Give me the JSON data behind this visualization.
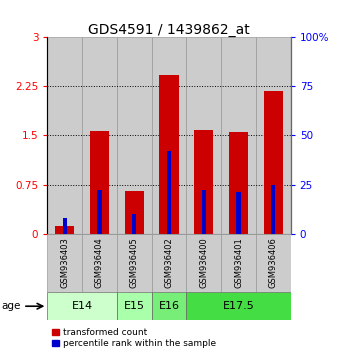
{
  "title": "GDS4591 / 1439862_at",
  "samples": [
    "GSM936403",
    "GSM936404",
    "GSM936405",
    "GSM936402",
    "GSM936400",
    "GSM936401",
    "GSM936406"
  ],
  "transformed_count": [
    0.12,
    1.57,
    0.65,
    2.42,
    1.58,
    1.55,
    2.18
  ],
  "percentile_rank_pct": [
    8,
    22,
    10,
    42,
    22,
    21,
    25
  ],
  "age_groups": [
    {
      "label": "E14",
      "start": 0,
      "end": 1,
      "color": "#ccffcc"
    },
    {
      "label": "E15",
      "start": 2,
      "end": 2,
      "color": "#aaffaa"
    },
    {
      "label": "E16",
      "start": 3,
      "end": 3,
      "color": "#77ee77"
    },
    {
      "label": "E17.5",
      "start": 4,
      "end": 6,
      "color": "#44dd44"
    }
  ],
  "ylim_left": [
    0,
    3
  ],
  "ylim_right": [
    0,
    100
  ],
  "yticks_left": [
    0,
    0.75,
    1.5,
    2.25,
    3
  ],
  "yticks_right": [
    0,
    25,
    50,
    75,
    100
  ],
  "bar_color": "#cc0000",
  "percentile_color": "#0000cc",
  "bar_width": 0.55,
  "blue_bar_width": 0.12,
  "background_sample": "#cccccc",
  "title_fontsize": 10,
  "tick_fontsize": 7.5,
  "legend_red": "transformed count",
  "legend_blue": "percentile rank within the sample"
}
